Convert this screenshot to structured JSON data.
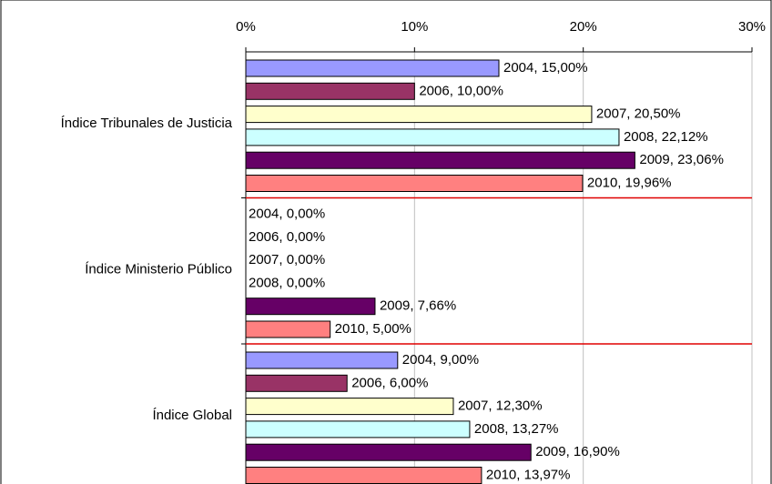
{
  "chart_data": {
    "type": "hbar",
    "categories": [
      "Índice Tribunales de Justicia",
      "Índice Ministerio Público",
      "Índice Global"
    ],
    "series": [
      {
        "color": "#9999ff",
        "values": [
          15.0,
          0.0,
          9.0
        ],
        "value_labels": [
          "2004, 15,00%",
          "2004, 0,00%",
          "2004, 9,00%"
        ]
      },
      {
        "color": "#993366",
        "values": [
          10.0,
          0.0,
          6.0
        ],
        "value_labels": [
          "2006, 10,00%",
          "2006, 0,00%",
          "2006, 6,00%"
        ]
      },
      {
        "color": "#ffffcc",
        "values": [
          20.5,
          0.0,
          12.3
        ],
        "value_labels": [
          "2007, 20,50%",
          "2007, 0,00%",
          "2007, 12,30%"
        ]
      },
      {
        "color": "#ccffff",
        "values": [
          22.12,
          0.0,
          13.27
        ],
        "value_labels": [
          "2008, 22,12%",
          "2008, 0,00%",
          "2008, 13,27%"
        ]
      },
      {
        "color": "#660066",
        "values": [
          23.06,
          7.66,
          16.9
        ],
        "value_labels": [
          "2009, 23,06%",
          "2009, 7,66%",
          "2009, 16,90%"
        ]
      },
      {
        "color": "#ff8080",
        "values": [
          19.96,
          5.0,
          13.97
        ],
        "value_labels": [
          "2010, 19,96%",
          "2010, 5,00%",
          "2010, 13,97%"
        ]
      }
    ],
    "xlim": [
      0,
      30
    ],
    "xticks": [
      {
        "value": 0,
        "label": "0%"
      },
      {
        "value": 10,
        "label": "10%"
      },
      {
        "value": 20,
        "label": "20%"
      },
      {
        "value": 30,
        "label": "30%"
      }
    ],
    "grid": true
  }
}
